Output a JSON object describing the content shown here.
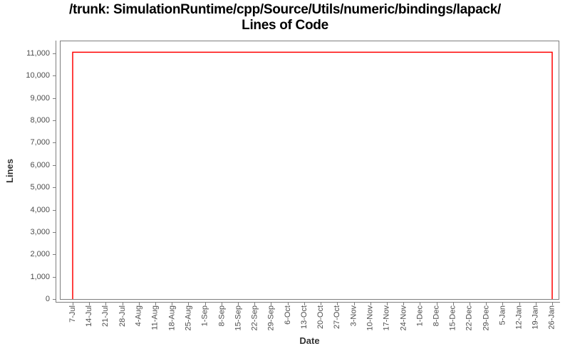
{
  "title": {
    "line1": "/trunk: SimulationRuntime/cpp/Source/Utils/numeric/bindings/lapack/",
    "line2": "Lines of Code"
  },
  "chart_data": {
    "type": "line",
    "title": "/trunk: SimulationRuntime/cpp/Source/Utils/numeric/bindings/lapack/ Lines of Code",
    "xlabel": "Date",
    "ylabel": "Lines",
    "grid": false,
    "legend": false,
    "ylim": [
      0,
      11600
    ],
    "y_tick_values": [
      0,
      1000,
      2000,
      3000,
      4000,
      5000,
      6000,
      7000,
      8000,
      9000,
      10000,
      11000
    ],
    "y_tick_labels": [
      "0",
      "1,000",
      "2,000",
      "3,000",
      "4,000",
      "5,000",
      "6,000",
      "7,000",
      "8,000",
      "9,000",
      "10,000",
      "11,000"
    ],
    "x_tick_labels": [
      "7-Jul",
      "14-Jul",
      "21-Jul",
      "28-Jul",
      "4-Aug",
      "11-Aug",
      "18-Aug",
      "25-Aug",
      "1-Sep",
      "8-Sep",
      "15-Sep",
      "22-Sep",
      "29-Sep",
      "6-Oct",
      "13-Oct",
      "20-Oct",
      "27-Oct",
      "3-Nov",
      "10-Nov",
      "17-Nov",
      "24-Nov",
      "1-Dec",
      "8-Dec",
      "15-Dec",
      "22-Dec",
      "29-Dec",
      "5-Jan",
      "12-Jan",
      "19-Jan",
      "26-Jan"
    ],
    "series": [
      {
        "name": "Lines of Code",
        "color": "#ff0000",
        "points": [
          {
            "x": "7-Jul",
            "y": 0
          },
          {
            "x": "7-Jul",
            "y": 11050
          },
          {
            "x": "26-Jan",
            "y": 11050
          },
          {
            "x": "26-Jan",
            "y": 0
          }
        ]
      }
    ]
  },
  "colors": {
    "series": "#ff0000",
    "axis": "#7e7e7e",
    "tick_label": "#4d4d4d",
    "axis_title": "#333333",
    "title": "#000000",
    "background": "#ffffff"
  }
}
